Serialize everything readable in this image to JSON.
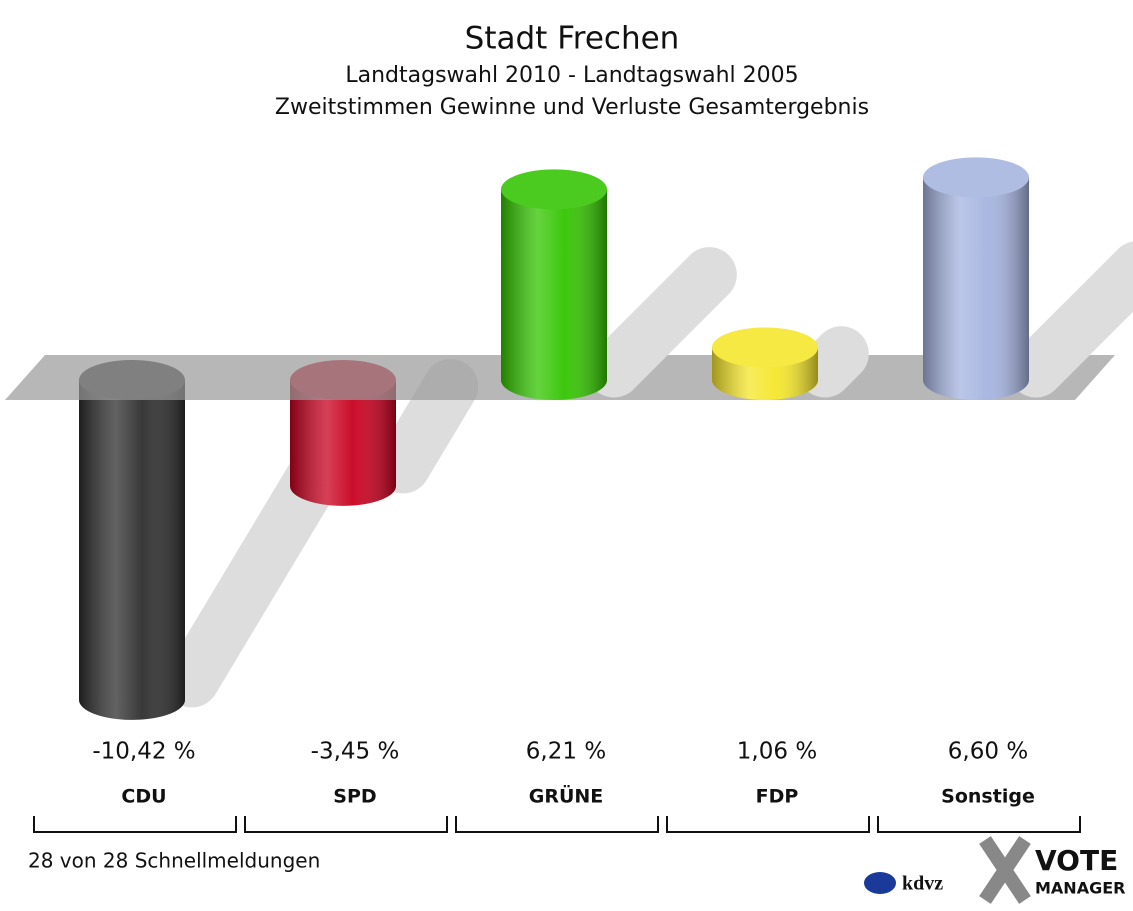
{
  "chart_data": {
    "type": "bar",
    "title": "Stadt Frechen",
    "subtitle": [
      "Landtagswahl 2010 - Landtagswahl 2005",
      "Zweitstimmen Gewinne und Verluste Gesamtergebnis"
    ],
    "categories": [
      "CDU",
      "SPD",
      "GRÜNE",
      "FDP",
      "Sonstige"
    ],
    "values": [
      -10.42,
      -3.45,
      6.21,
      1.06,
      6.6
    ],
    "value_labels": [
      "-10,42 %",
      "-3,45 %",
      "6,21 %",
      "1,06 %",
      "6,60 %"
    ],
    "colors": [
      "#2e2e2e",
      "#c8001e",
      "#33c400",
      "#f5e62a",
      "#a5b4e0"
    ],
    "footnote": "28 von 28 Schnellmeldungen"
  },
  "logo": {
    "brand": "kdvz",
    "product": [
      "VOTE",
      "MANAGER"
    ]
  }
}
